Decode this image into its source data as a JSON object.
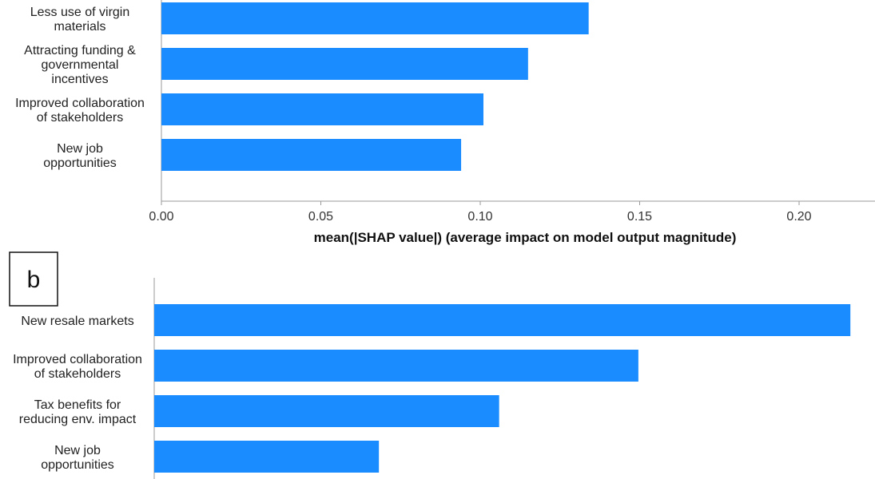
{
  "colors": {
    "bar": "#1a8cff",
    "axis": "#999999",
    "text": "#222222",
    "panel_border": "#111111"
  },
  "chart_data": [
    {
      "type": "bar",
      "orientation": "horizontal",
      "panel": "",
      "categories": [
        "Less use of virgin materials",
        "Attracting funding & governmental incentives",
        "Improved collaboration of stakeholders",
        "New job opportunities"
      ],
      "values": [
        0.134,
        0.115,
        0.101,
        0.094
      ],
      "xlabel": "mean(|SHAP value|) (average impact on model output magnitude)",
      "xticks": [
        "0.00",
        "0.05",
        "0.10",
        "0.15",
        "0.20"
      ],
      "xlim": [
        0,
        0.225
      ],
      "grid": false
    },
    {
      "type": "bar",
      "orientation": "horizontal",
      "panel": "b",
      "categories": [
        "New resale markets",
        "Improved collaboration of stakeholders",
        "Tax benefits for reducing env. impact",
        "New job opportunities"
      ],
      "values": [
        0.22,
        0.153,
        0.109,
        0.071
      ],
      "xlabel": "",
      "xlim": [
        0,
        0.225
      ],
      "grid": false
    }
  ],
  "labels_a": [
    [
      "Less use of virgin",
      "materials"
    ],
    [
      "Attracting funding &",
      "governmental",
      "incentives"
    ],
    [
      "Improved collaboration",
      "of stakeholders"
    ],
    [
      "New job",
      "opportunities"
    ]
  ],
  "labels_b": [
    [
      "New resale markets"
    ],
    [
      "Improved collaboration",
      "of stakeholders"
    ],
    [
      "Tax benefits for",
      "reducing env. impact"
    ],
    [
      "New job",
      "opportunities"
    ]
  ]
}
